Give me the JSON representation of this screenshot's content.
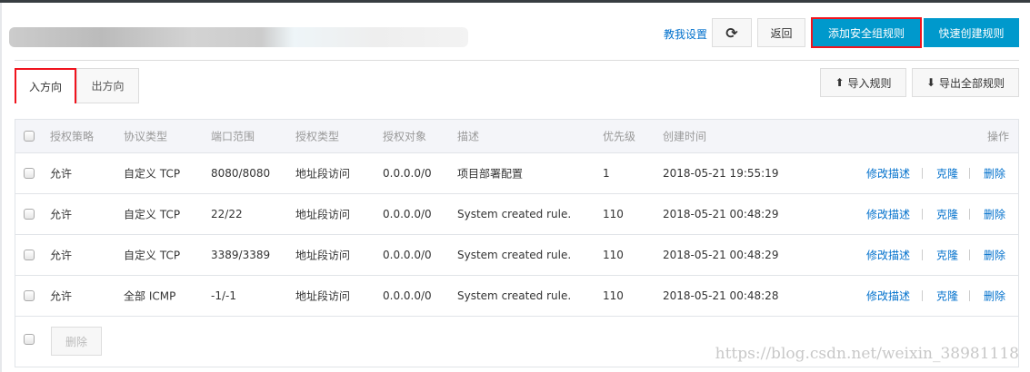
{
  "header": {
    "help_link": "教我设置",
    "refresh_icon": "refresh-icon",
    "back": "返回",
    "add_rule": "添加安全组规则",
    "quick_create": "快速创建规则"
  },
  "tabs": [
    {
      "label": "入方向",
      "active": true
    },
    {
      "label": "出方向",
      "active": false
    }
  ],
  "toolbar": {
    "import": "导入规则",
    "export": "导出全部规则"
  },
  "table": {
    "columns": [
      "授权策略",
      "协议类型",
      "端口范围",
      "授权类型",
      "授权对象",
      "描述",
      "优先级",
      "创建时间",
      "操作"
    ],
    "rows": [
      {
        "policy": "允许",
        "protocol": "自定义 TCP",
        "ports": "8080/8080",
        "auth_type": "地址段访问",
        "target": "0.0.0.0/0",
        "desc": "项目部署配置",
        "priority": "1",
        "created": "2018-05-21 19:55:19"
      },
      {
        "policy": "允许",
        "protocol": "自定义 TCP",
        "ports": "22/22",
        "auth_type": "地址段访问",
        "target": "0.0.0.0/0",
        "desc": "System created rule.",
        "priority": "110",
        "created": "2018-05-21 00:48:29"
      },
      {
        "policy": "允许",
        "protocol": "自定义 TCP",
        "ports": "3389/3389",
        "auth_type": "地址段访问",
        "target": "0.0.0.0/0",
        "desc": "System created rule.",
        "priority": "110",
        "created": "2018-05-21 00:48:29"
      },
      {
        "policy": "允许",
        "protocol": "全部 ICMP",
        "ports": "-1/-1",
        "auth_type": "地址段访问",
        "target": "0.0.0.0/0",
        "desc": "System created rule.",
        "priority": "110",
        "created": "2018-05-21 00:48:28"
      }
    ],
    "actions": {
      "edit": "修改描述",
      "clone": "克隆",
      "delete": "删除"
    },
    "bulk_delete": "删除"
  },
  "watermark": "https://blog.csdn.net/weixin_38981118",
  "colors": {
    "primary": "#0099cc",
    "link": "#0070cc",
    "highlight": "#f0141e"
  }
}
